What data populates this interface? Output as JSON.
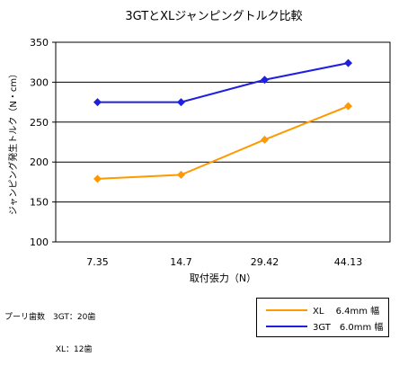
{
  "chart_data": {
    "type": "line",
    "title": "3GTとXLジャンピングトルク比較",
    "xlabel": "取付張力（N）",
    "ylabel": "ジャンピング発生トルク（N・cm）",
    "categories": [
      "7.35",
      "14.7",
      "29.42",
      "44.13"
    ],
    "ylim": [
      100,
      350
    ],
    "yticks": [
      "100",
      "150",
      "200",
      "250",
      "300",
      "350"
    ],
    "grid": true,
    "legend_placement": "bottom-right",
    "series": [
      {
        "name": "XL　 6.4mm 幅",
        "color": "#ff9900",
        "marker": "diamond",
        "values": [
          179,
          184,
          228,
          270
        ]
      },
      {
        "name": "3GT　6.0mm 幅",
        "color": "#1f1fe0",
        "marker": "diamond",
        "values": [
          275,
          275,
          303,
          324
        ]
      }
    ]
  },
  "notes": {
    "line1": "プーリ歯数　3GT：20歯",
    "line2": "　　　　　　 XL：12歯"
  }
}
